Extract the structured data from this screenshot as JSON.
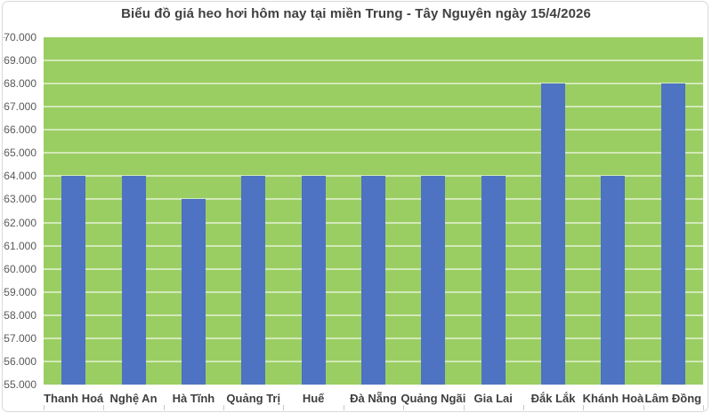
{
  "colors": {
    "bar": "#4d73c2",
    "plot_background": "#9bce62",
    "gridline": "rgba(255,255,255,0.55)",
    "title_text": "#404040",
    "y_label_text": "#595959",
    "x_label_text": "#3f3f3f",
    "axis_and_frame": "#c9c9c9"
  },
  "chart_data": {
    "type": "bar",
    "title": "Biểu đồ giá heo hơi hôm nay tại miền Trung - Tây Nguyên ngày 15/4/2026",
    "categories": [
      "Thanh Hoá",
      "Nghệ An",
      "Hà Tĩnh",
      "Quảng Trị",
      "Huế",
      "Đà Nẵng",
      "Quảng Ngãi",
      "Gia Lai",
      "Đắk Lắk",
      "Khánh Hoà",
      "Lâm Đồng"
    ],
    "values": [
      64000,
      64000,
      63000,
      64000,
      64000,
      64000,
      64000,
      64000,
      68000,
      64000,
      68000
    ],
    "xlabel": "",
    "ylabel": "",
    "ylim": [
      55000,
      70000
    ],
    "y_step": 1000,
    "y_tick_labels": [
      "70.000",
      "69.000",
      "68.000",
      "67.000",
      "66.000",
      "65.000",
      "64.000",
      "63.000",
      "62.000",
      "61.000",
      "60.000",
      "59.000",
      "58.000",
      "57.000",
      "56.000",
      "55.000"
    ],
    "grid": true,
    "legend": "none",
    "plot_area_fill": "green",
    "data_labels": "none"
  }
}
